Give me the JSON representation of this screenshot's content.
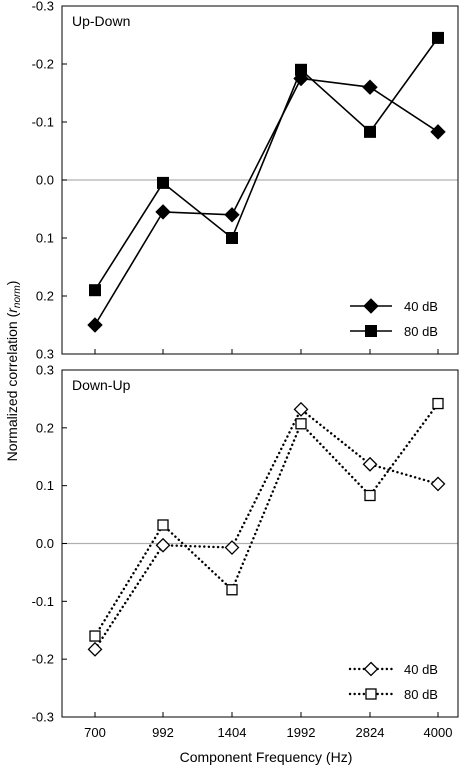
{
  "chart_data": [
    {
      "type": "line",
      "title": "Up-Down",
      "categories": [
        "700",
        "992",
        "1404",
        "1992",
        "2824",
        "4000"
      ],
      "ylim": [
        -0.3,
        0.3
      ],
      "y_inverted": true,
      "y_ticks": [
        "-0.3",
        "-0.2",
        "-0.1",
        "0.0",
        "0.1",
        "0.2",
        "0.3"
      ],
      "reference_line": 0.0,
      "grid": false,
      "legend_position": "bottom-right",
      "series": [
        {
          "name": "40 dB",
          "marker": "filled-diamond",
          "line": "solid",
          "values": [
            0.25,
            0.055,
            0.06,
            -0.175,
            -0.16,
            -0.083
          ]
        },
        {
          "name": "80 dB",
          "marker": "filled-square",
          "line": "solid",
          "values": [
            0.19,
            0.005,
            0.1,
            -0.19,
            -0.083,
            -0.245
          ]
        }
      ]
    },
    {
      "type": "line",
      "title": "Down-Up",
      "categories": [
        "700",
        "992",
        "1404",
        "1992",
        "2824",
        "4000"
      ],
      "ylim": [
        -0.3,
        0.3
      ],
      "y_inverted": false,
      "y_ticks": [
        "0.3",
        "0.2",
        "0.1",
        "0.0",
        "-0.1",
        "-0.2",
        "-0.3"
      ],
      "reference_line": 0.0,
      "grid": false,
      "legend_position": "bottom-right",
      "series": [
        {
          "name": "40 dB",
          "marker": "open-diamond",
          "line": "dotted",
          "values": [
            -0.183,
            -0.003,
            -0.007,
            0.232,
            0.137,
            0.103
          ]
        },
        {
          "name": "80 dB",
          "marker": "open-square",
          "line": "dotted",
          "values": [
            -0.16,
            0.032,
            -0.08,
            0.207,
            0.083,
            0.242
          ]
        }
      ]
    }
  ],
  "shared": {
    "ylabel_main": "Normalized correlation (",
    "ylabel_r": "r",
    "ylabel_sub": "norm",
    "ylabel_close": ")",
    "xlabel": "Component Frequency (Hz)"
  },
  "colors": {
    "ink": "#000000",
    "zero_line": "#b0b0b0"
  }
}
